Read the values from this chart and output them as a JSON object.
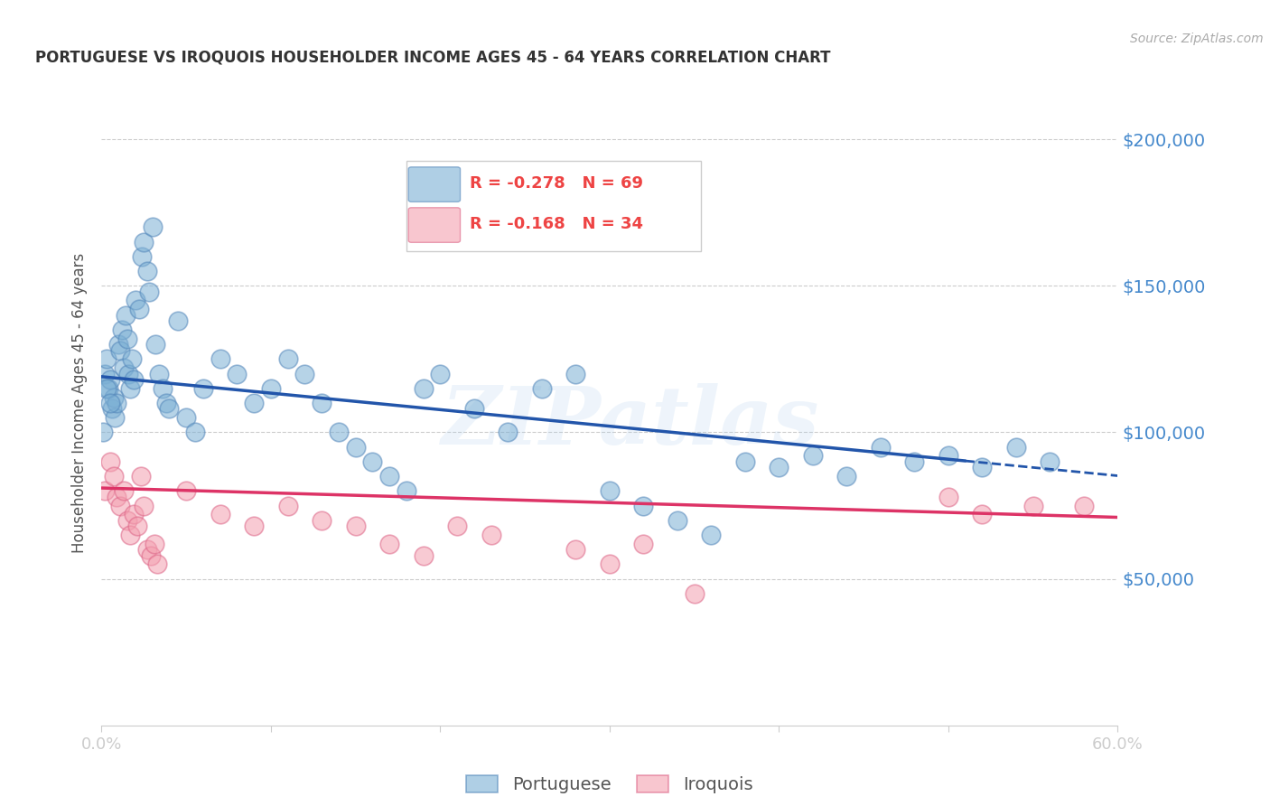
{
  "title": "PORTUGUESE VS IROQUOIS HOUSEHOLDER INCOME AGES 45 - 64 YEARS CORRELATION CHART",
  "source": "Source: ZipAtlas.com",
  "ylabel": "Householder Income Ages 45 - 64 years",
  "watermark": "ZIPatlas",
  "xlim": [
    0.0,
    0.6
  ],
  "ylim": [
    0,
    220000
  ],
  "legend_r_blue": "R = -0.278",
  "legend_n_blue": "N = 69",
  "legend_r_pink": "R = -0.168",
  "legend_n_pink": "N = 34",
  "portuguese_label": "Portuguese",
  "iroquois_label": "Iroquois",
  "blue_color": "#7BAFD4",
  "pink_color": "#F4A0B0",
  "blue_line_color": "#2255AA",
  "pink_line_color": "#DD3366",
  "title_color": "#333333",
  "source_color": "#AAAAAA",
  "tick_label_color": "#4488CC",
  "background_color": "#FFFFFF",
  "blue_line_x0": 0.0,
  "blue_line_y0": 119000,
  "blue_line_x1": 0.55,
  "blue_line_y1": 88000,
  "pink_line_x0": 0.0,
  "pink_line_y0": 81000,
  "pink_line_x1": 0.6,
  "pink_line_y1": 71000,
  "blue_scatter_x": [
    0.002,
    0.003,
    0.004,
    0.005,
    0.006,
    0.007,
    0.008,
    0.009,
    0.01,
    0.011,
    0.012,
    0.013,
    0.014,
    0.015,
    0.016,
    0.017,
    0.018,
    0.019,
    0.02,
    0.022,
    0.024,
    0.025,
    0.027,
    0.028,
    0.03,
    0.032,
    0.034,
    0.036,
    0.038,
    0.04,
    0.045,
    0.05,
    0.055,
    0.06,
    0.07,
    0.08,
    0.09,
    0.1,
    0.11,
    0.12,
    0.13,
    0.14,
    0.15,
    0.16,
    0.17,
    0.18,
    0.19,
    0.2,
    0.22,
    0.24,
    0.26,
    0.28,
    0.3,
    0.32,
    0.34,
    0.36,
    0.38,
    0.4,
    0.42,
    0.44,
    0.46,
    0.48,
    0.5,
    0.52,
    0.54,
    0.56,
    0.001,
    0.003,
    0.005
  ],
  "blue_scatter_y": [
    120000,
    125000,
    115000,
    118000,
    108000,
    112000,
    105000,
    110000,
    130000,
    128000,
    135000,
    122000,
    140000,
    132000,
    120000,
    115000,
    125000,
    118000,
    145000,
    142000,
    160000,
    165000,
    155000,
    148000,
    170000,
    130000,
    120000,
    115000,
    110000,
    108000,
    138000,
    105000,
    100000,
    115000,
    125000,
    120000,
    110000,
    115000,
    125000,
    120000,
    110000,
    100000,
    95000,
    90000,
    85000,
    80000,
    115000,
    120000,
    108000,
    100000,
    115000,
    120000,
    80000,
    75000,
    70000,
    65000,
    90000,
    88000,
    92000,
    85000,
    95000,
    90000,
    92000,
    88000,
    95000,
    90000,
    100000,
    115000,
    110000
  ],
  "pink_scatter_x": [
    0.002,
    0.005,
    0.007,
    0.009,
    0.011,
    0.013,
    0.015,
    0.017,
    0.019,
    0.021,
    0.023,
    0.025,
    0.027,
    0.029,
    0.031,
    0.033,
    0.05,
    0.07,
    0.09,
    0.11,
    0.13,
    0.15,
    0.17,
    0.19,
    0.21,
    0.23,
    0.28,
    0.3,
    0.32,
    0.35,
    0.5,
    0.52,
    0.55,
    0.58
  ],
  "pink_scatter_y": [
    80000,
    90000,
    85000,
    78000,
    75000,
    80000,
    70000,
    65000,
    72000,
    68000,
    85000,
    75000,
    60000,
    58000,
    62000,
    55000,
    80000,
    72000,
    68000,
    75000,
    70000,
    68000,
    62000,
    58000,
    68000,
    65000,
    60000,
    55000,
    62000,
    45000,
    78000,
    72000,
    75000,
    75000
  ]
}
